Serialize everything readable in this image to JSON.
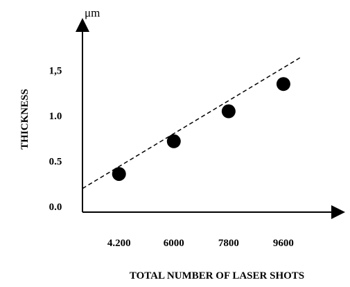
{
  "chart_data": {
    "type": "scatter",
    "title": "",
    "xlabel": "TOTAL NUMBER OF LASER SHOTS",
    "ylabel": "THICKNESS",
    "y_unit": "μm",
    "x_tick_labels": [
      "4.200",
      "6000",
      "7800",
      "9600"
    ],
    "x_tick_values": [
      4200,
      6000,
      7800,
      9600
    ],
    "y_tick_labels": [
      "0.0",
      "0.5",
      "1.0",
      "1,5"
    ],
    "y_tick_values": [
      0.0,
      0.5,
      1.0,
      1.5
    ],
    "points": [
      {
        "x": 4200,
        "y": 0.36
      },
      {
        "x": 6000,
        "y": 0.72
      },
      {
        "x": 7800,
        "y": 1.05
      },
      {
        "x": 9600,
        "y": 1.35
      }
    ],
    "trendline": {
      "style": "dashed",
      "x": [
        3000,
        10200
      ],
      "y": [
        0.2,
        1.65
      ]
    },
    "ylim": [
      -0.06,
      2.0
    ],
    "xlim": [
      3000,
      11400
    ],
    "grid": false,
    "legend": "none",
    "colors": {
      "axis": "#000000",
      "marker": "#000000",
      "trendline": "#000000"
    }
  }
}
